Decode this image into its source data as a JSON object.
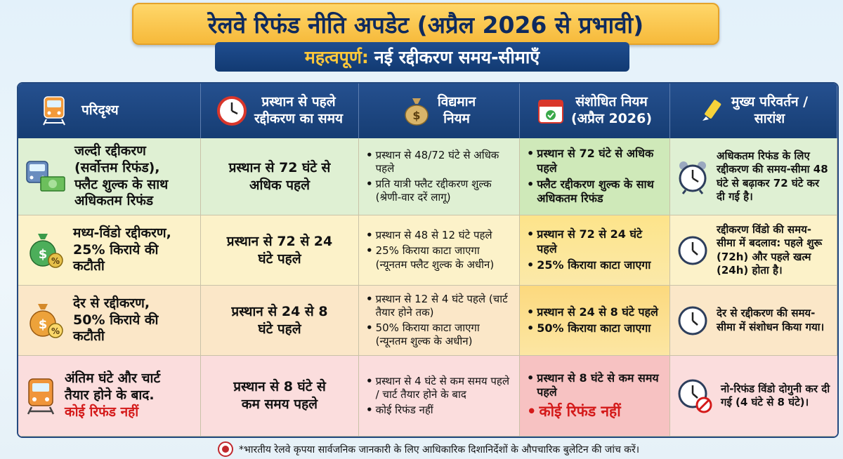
{
  "header": {
    "title": "रेलवे रिफंड नीति अपडेट (अप्रैल 2026 से प्रभावी)",
    "subtitle_highlight": "महत्वपूर्ण:",
    "subtitle_rest": "नई रद्दीकरण समय-सीमाएँ"
  },
  "columns": {
    "scenario": "परिदृश्य",
    "cancel_time_1": "प्रस्थान से पहले",
    "cancel_time_2": "रद्दीकरण का समय",
    "existing_1": "विद्यमान",
    "existing_2": "नियम",
    "revised_1": "संशोधित नियम",
    "revised_2": "(अप्रैल 2026)",
    "summary_1": "मुख्य परिवर्तन /",
    "summary_2": "सारांश"
  },
  "rows": [
    {
      "scenario": [
        "जल्दी रद्दीकरण",
        "(सर्वोत्तम रिफंड),",
        "फ्लैट शुल्क के साथ",
        "अधिकतम रिफंड"
      ],
      "time": [
        "प्रस्थान से 72 घंटे से",
        "अधिक पहले"
      ],
      "existing": [
        "प्रस्थान से 48/72 घंटे से अधिक पहले",
        "प्रति यात्री फ्लैट रद्दीकरण शुल्क (श्रेणी-वार दरें लागू)"
      ],
      "revised": [
        "प्रस्थान से 72 घंटे से अधिक पहले",
        "फ्लैट रद्दीकरण शुल्क के साथ अधिकतम रिफंड"
      ],
      "summary": "अधिकतम रिफंड के लिए रद्दीकरण की समय-सीमा 48 घंटे से बढ़ाकर 72 घंटे कर दी गई है।"
    },
    {
      "scenario": [
        "मध्य-विंडो रद्दीकरण,",
        "25% किराये की कटौती"
      ],
      "time": [
        "प्रस्थान से 72 से 24",
        "घंटे पहले"
      ],
      "existing": [
        "प्रस्थान से 48 से 12 घंटे पहले",
        "25% किराया काटा जाएगा (न्यूनतम फ्लैट शुल्क के अधीन)"
      ],
      "revised": [
        "प्रस्थान से 72 से 24 घंटे पहले",
        "25% किराया काटा जाएगा"
      ],
      "summary": "रद्दीकरण विंडो की समय-सीमा में बदलाव: पहले शुरू (72h) और पहले खत्म (24h) होता है।"
    },
    {
      "scenario": [
        "देर से रद्दीकरण,",
        "50% किराये की कटौती"
      ],
      "time": [
        "प्रस्थान से 24 से 8",
        "घंटे पहले"
      ],
      "existing": [
        "प्रस्थान से 12 से 4 घंटे पहले (चार्ट तैयार होने तक)",
        "50% किराया काटा जाएगा (न्यूनतम शुल्क के अधीन)"
      ],
      "revised": [
        "प्रस्थान से 24 से 8 घंटे पहले",
        "50% किराया काटा जाएगा"
      ],
      "summary": "देर से रद्दीकरण की समय-सीमा में संशोधन किया गया।"
    },
    {
      "scenario": [
        "अंतिम घंटे और चार्ट",
        "तैयार होने के बाद."
      ],
      "scenario_red": "कोई रिफंड नहीं",
      "time": [
        "प्रस्थान से 8 घंटे से",
        "कम समय पहले"
      ],
      "existing": [
        "प्रस्थान से 4 घंटे से कम समय पहले / चार्ट तैयार होने के बाद",
        "कोई रिफंड नहीं"
      ],
      "revised": [
        "प्रस्थान से 8 घंटे से कम समय पहले"
      ],
      "revised_red": "कोई रिफंड नहीं",
      "summary": "नो-रिफंड विंडो दोगुनी कर दी गई (4 घंटे से 8 घंटे)।"
    }
  ],
  "footer": "*भारतीय रेलवे कृपया सार्वजनिक जानकारी के लिए आधिकारिक दिशानिर्देशों के औपचारिक बुलेटिन की जांच करें।",
  "colors": {
    "navy": "#163d73",
    "gold": "#f6b93a",
    "red": "#d41a1a"
  }
}
